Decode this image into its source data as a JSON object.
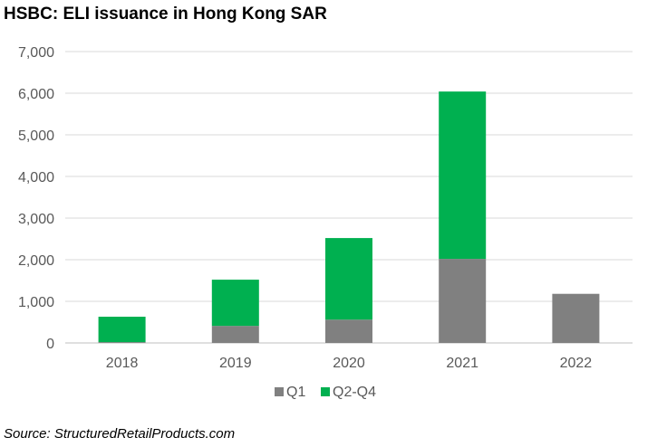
{
  "chart_data": {
    "type": "bar",
    "stacked": true,
    "title": "HSBC: ELI issuance in Hong Kong SAR",
    "source": "Source: StructuredRetailProducts.com",
    "categories": [
      "2018",
      "2019",
      "2020",
      "2021",
      "2022"
    ],
    "series": [
      {
        "name": "Q1",
        "color": "#808080",
        "values": [
          20,
          410,
          560,
          2020,
          1180
        ]
      },
      {
        "name": "Q2-Q4",
        "color": "#00b050",
        "values": [
          610,
          1110,
          1960,
          4020,
          0
        ]
      }
    ],
    "ylim": [
      0,
      7000
    ],
    "yticks": [
      0,
      1000,
      2000,
      3000,
      4000,
      5000,
      6000,
      7000
    ],
    "ytick_labels": [
      "0",
      "1,000",
      "2,000",
      "3,000",
      "4,000",
      "5,000",
      "6,000",
      "7,000"
    ],
    "grid": true,
    "legend_position": "bottom"
  }
}
